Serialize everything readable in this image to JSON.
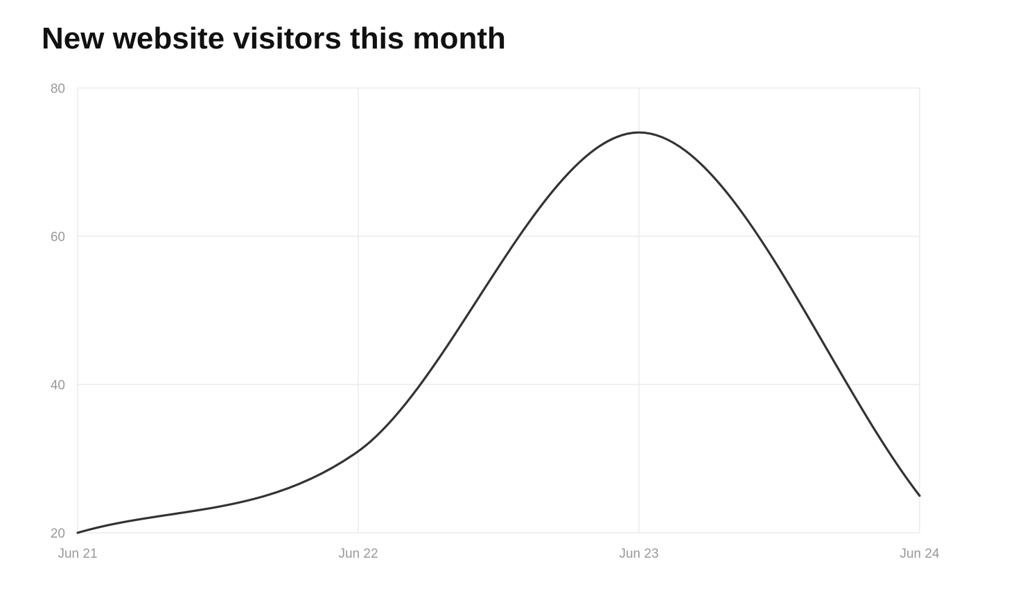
{
  "chart_data": {
    "type": "line",
    "title": "New website visitors this month",
    "xlabel": "",
    "ylabel": "",
    "categories": [
      "Jun 21",
      "Jun 22",
      "Jun 23",
      "Jun 24"
    ],
    "series": [
      {
        "values": [
          20,
          31,
          74,
          25
        ]
      }
    ],
    "ylim": [
      20,
      80
    ],
    "yticks": [
      20,
      40,
      60,
      80
    ],
    "grid": true,
    "legend": "none",
    "line_color": "#333333",
    "grid_color": "#ececec",
    "tick_color": "#999999"
  }
}
